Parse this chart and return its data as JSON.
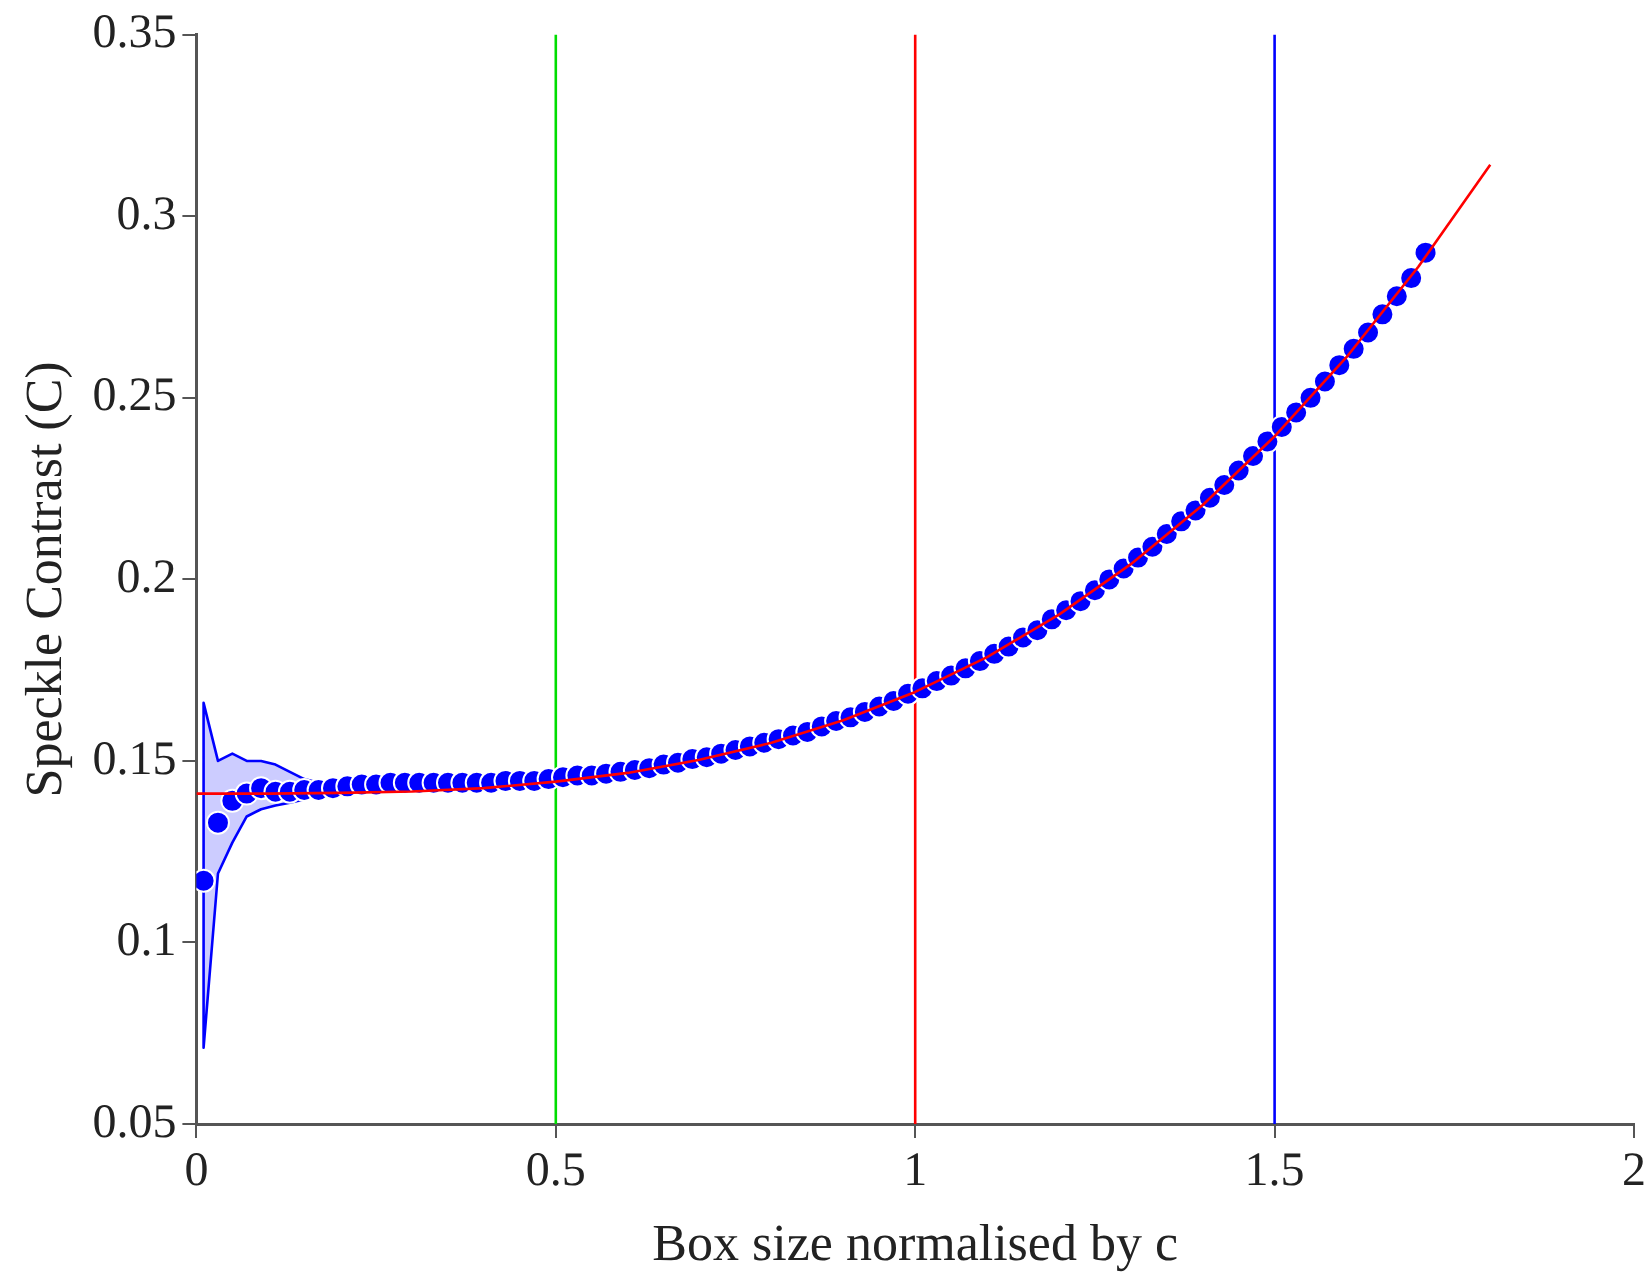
{
  "chart_data": {
    "type": "scatter",
    "xlabel": "Box size normalised by c",
    "ylabel": "Speckle Contrast (C)",
    "xlim": [
      0,
      2
    ],
    "xticks": [
      0,
      0.5,
      1,
      1.5,
      2
    ],
    "ylim": [
      0.05,
      0.35
    ],
    "yticks": [
      0.05,
      0.1,
      0.15,
      0.2,
      0.25,
      0.3,
      0.35
    ],
    "grid": false,
    "legend": false,
    "series": [
      {
        "marker": "circle",
        "color": "#0000ff",
        "x": [
          0.01,
          0.03,
          0.05,
          0.07,
          0.09,
          0.11,
          0.13,
          0.15,
          0.17,
          0.19,
          0.21,
          0.23,
          0.25,
          0.27,
          0.29,
          0.31,
          0.33,
          0.35,
          0.37,
          0.39,
          0.41,
          0.43,
          0.45,
          0.47,
          0.49,
          0.51,
          0.53,
          0.55,
          0.57,
          0.59,
          0.61,
          0.63,
          0.65,
          0.67,
          0.69,
          0.71,
          0.73,
          0.75,
          0.77,
          0.79,
          0.81,
          0.83,
          0.85,
          0.87,
          0.89,
          0.91,
          0.93,
          0.95,
          0.97,
          0.99,
          1.01,
          1.03,
          1.05,
          1.07,
          1.09,
          1.11,
          1.13,
          1.15,
          1.17,
          1.19,
          1.21,
          1.23,
          1.25,
          1.27,
          1.29,
          1.31,
          1.33,
          1.35,
          1.37,
          1.39,
          1.41,
          1.43,
          1.45,
          1.47,
          1.49,
          1.51,
          1.53,
          1.55,
          1.57,
          1.59,
          1.61,
          1.63,
          1.65,
          1.67,
          1.69,
          1.71
        ],
        "values": [
          0.117,
          0.133,
          0.139,
          0.141,
          0.1425,
          0.1415,
          0.1415,
          0.142,
          0.142,
          0.1425,
          0.143,
          0.1435,
          0.1435,
          0.144,
          0.144,
          0.144,
          0.144,
          0.144,
          0.144,
          0.144,
          0.144,
          0.1445,
          0.1445,
          0.1445,
          0.145,
          0.1455,
          0.146,
          0.146,
          0.1465,
          0.147,
          0.1475,
          0.148,
          0.149,
          0.1495,
          0.1505,
          0.151,
          0.152,
          0.153,
          0.154,
          0.155,
          0.156,
          0.157,
          0.158,
          0.1595,
          0.161,
          0.162,
          0.1635,
          0.165,
          0.1665,
          0.1685,
          0.17,
          0.172,
          0.1735,
          0.1755,
          0.1775,
          0.1795,
          0.1815,
          0.184,
          0.186,
          0.189,
          0.1915,
          0.194,
          0.197,
          0.2,
          0.203,
          0.206,
          0.209,
          0.2125,
          0.216,
          0.219,
          0.2225,
          0.226,
          0.23,
          0.234,
          0.238,
          0.242,
          0.246,
          0.25,
          0.2545,
          0.259,
          0.2635,
          0.268,
          0.273,
          0.278,
          0.283,
          0.29
        ],
        "lower": [
          0.071,
          0.119,
          0.1275,
          0.1347,
          0.1367,
          0.1377,
          0.1385,
          0.1394,
          0.1405,
          null,
          null,
          null,
          null,
          null,
          null,
          null,
          null,
          null,
          null,
          null,
          null,
          null,
          null,
          null,
          null,
          null,
          null,
          null,
          null,
          null,
          null,
          null,
          null,
          null,
          null,
          null,
          null,
          null,
          null,
          null,
          null,
          null,
          null,
          null,
          null,
          null,
          null,
          null,
          null,
          null,
          null,
          null,
          null,
          null,
          null,
          null,
          null,
          null,
          null,
          null,
          null,
          null,
          null,
          null,
          null,
          null,
          null,
          null,
          null,
          null,
          null,
          null,
          null,
          null,
          null,
          null,
          null,
          null,
          null,
          null,
          null,
          null,
          null,
          null,
          null,
          null
        ],
        "upper": [
          0.166,
          0.15,
          0.152,
          0.15,
          0.15,
          0.149,
          0.147,
          0.145,
          0.144,
          null,
          null,
          null,
          null,
          null,
          null,
          null,
          null,
          null,
          null,
          null,
          null,
          null,
          null,
          null,
          null,
          null,
          null,
          null,
          null,
          null,
          null,
          null,
          null,
          null,
          null,
          null,
          null,
          null,
          null,
          null,
          null,
          null,
          null,
          null,
          null,
          null,
          null,
          null,
          null,
          null,
          null,
          null,
          null,
          null,
          null,
          null,
          null,
          null,
          null,
          null,
          null,
          null,
          null,
          null,
          null,
          null,
          null,
          null,
          null,
          null,
          null,
          null,
          null,
          null,
          null,
          null,
          null,
          null,
          null,
          null,
          null,
          null,
          null,
          null,
          null,
          null
        ]
      },
      {
        "type": "line",
        "color": "#ff0000",
        "x": [
          0,
          0.1,
          0.2,
          0.3,
          0.4,
          0.5,
          0.6,
          0.7,
          0.8,
          0.9,
          1,
          1.1,
          1.2,
          1.3,
          1.4,
          1.5,
          1.6,
          1.7,
          1.8
        ],
        "values": [
          0.141,
          0.141,
          0.1412,
          0.1416,
          0.1425,
          0.1443,
          0.1467,
          0.1503,
          0.155,
          0.1612,
          0.169,
          0.1786,
          0.1903,
          0.2042,
          0.2205,
          0.2394,
          0.2612,
          0.2861,
          0.3142
        ]
      }
    ],
    "ref_lines": [
      {
        "axis": "x",
        "value": 0.5,
        "color": "#00dd00"
      },
      {
        "axis": "x",
        "value": 1,
        "color": "#ff0000"
      },
      {
        "axis": "x",
        "value": 1.5,
        "color": "#0000ff"
      }
    ]
  }
}
